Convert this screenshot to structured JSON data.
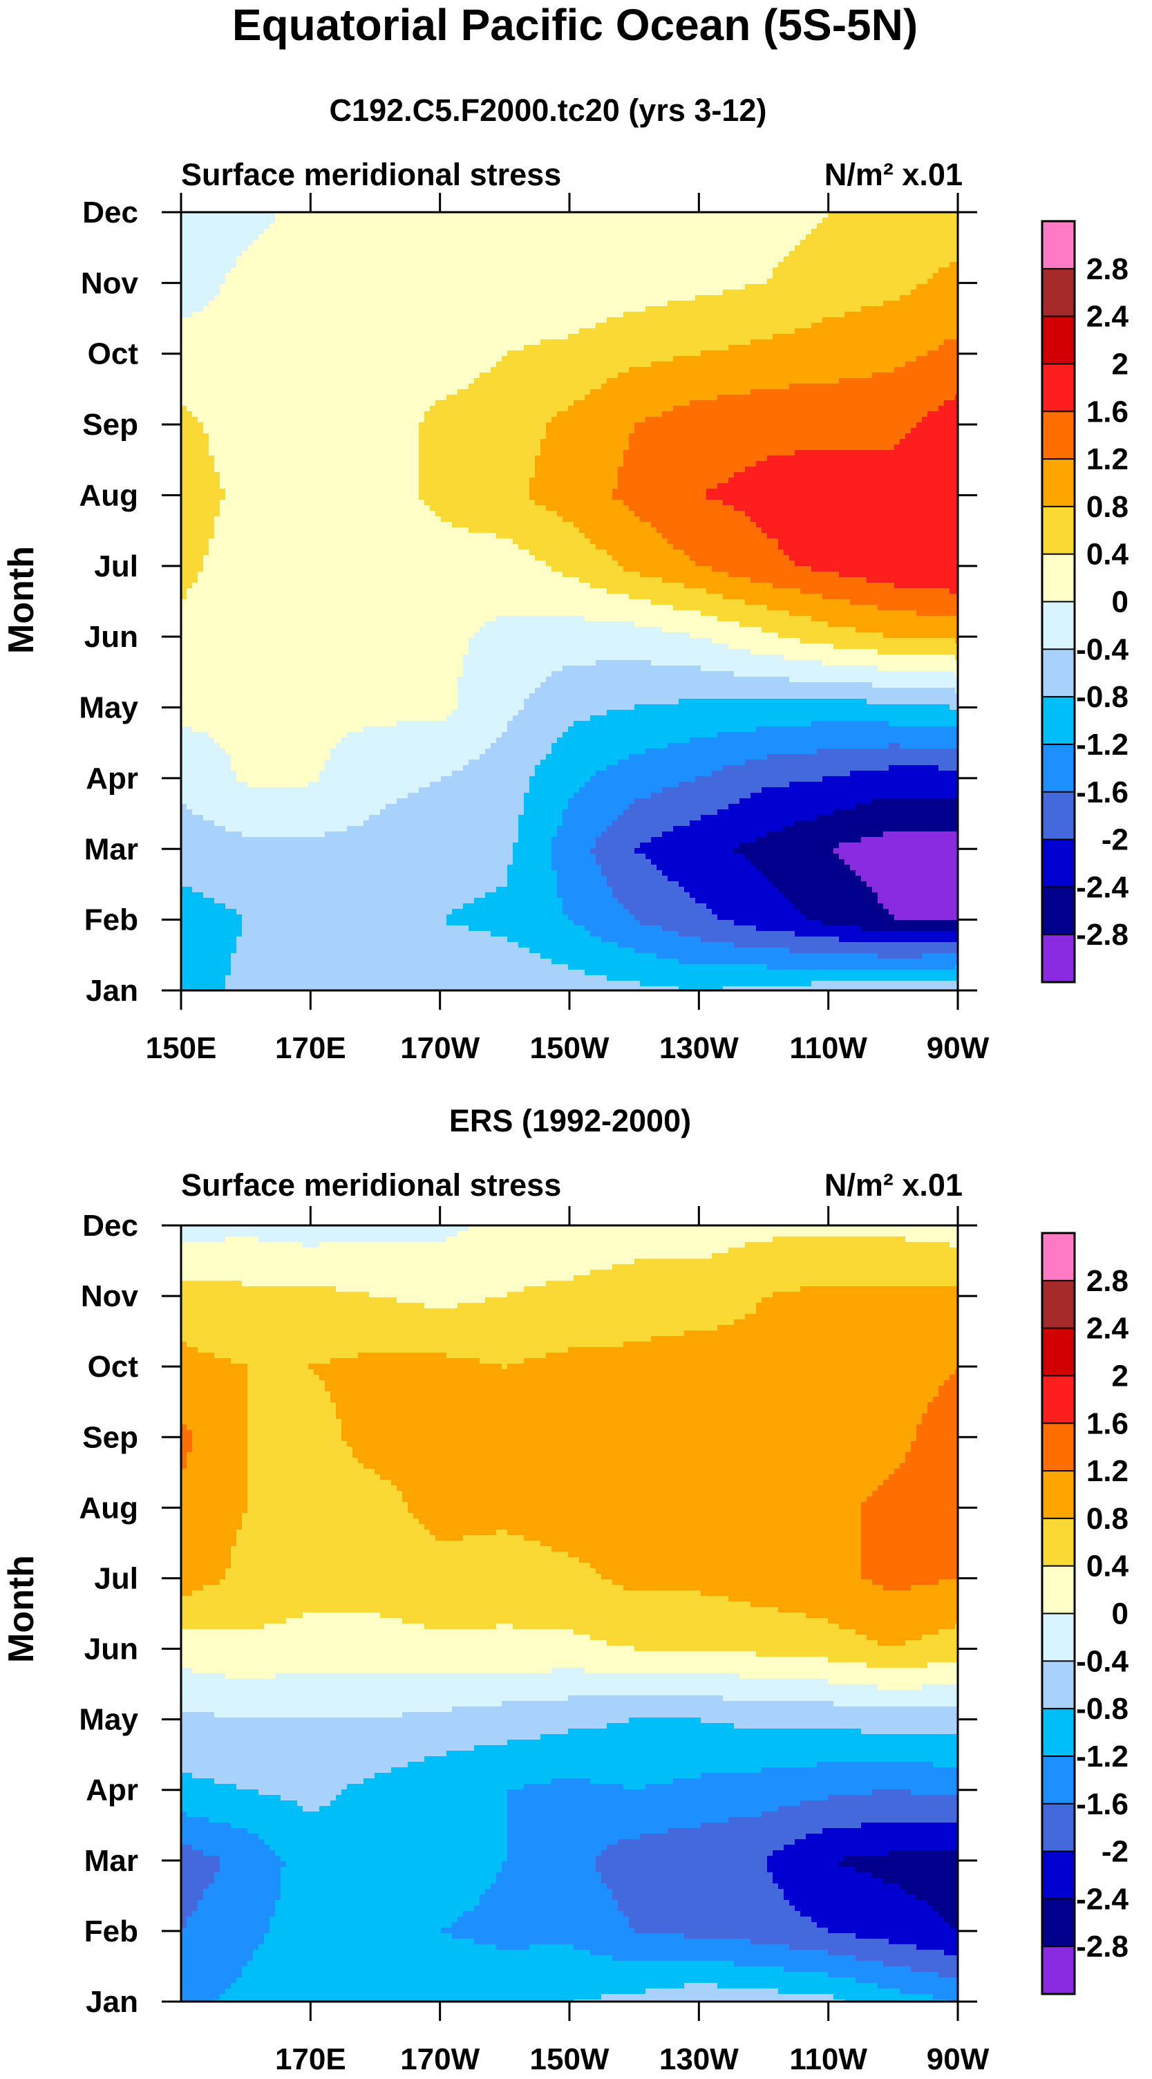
{
  "figure": {
    "title": "Equatorial Pacific Ocean (5S-5N)"
  },
  "contour_levels": [
    -2.8,
    -2.4,
    -2.0,
    -1.6,
    -1.2,
    -0.8,
    -0.4,
    0.0,
    0.4,
    0.8,
    1.2,
    1.6,
    2.0,
    2.4,
    2.8
  ],
  "colorbar": {
    "labels": [
      "2.8",
      "2.4",
      "2",
      "1.6",
      "1.2",
      "0.8",
      "0.4",
      "0",
      "-0.4",
      "-0.8",
      "-1.2",
      "-1.6",
      "-2",
      "-2.4",
      "-2.8"
    ],
    "colors": [
      "#ff7ac4",
      "#a52a2a",
      "#d20000",
      "#ff1e1e",
      "#ff6e00",
      "#ffa500",
      "#fbd935",
      "#ffffc8",
      "#d8f4ff",
      "#a8d2fb",
      "#00bef7",
      "#1e8fff",
      "#4369dc",
      "#0000d0",
      "#00008c",
      "#8a2be2"
    ]
  },
  "chart_data": [
    {
      "type": "heatmap",
      "title": "C192.C5.F2000.tc20 (yrs 3-12)",
      "left_label": "Surface meridional stress",
      "right_label": "N/m² x.01",
      "ylabel": "Month",
      "xlabel": "",
      "xlim": [
        150,
        270
      ],
      "x_ticks": [
        150,
        170,
        190,
        210,
        230,
        250,
        270
      ],
      "x_tick_labels": [
        "150E",
        "170E",
        "170W",
        "150W",
        "130W",
        "110W",
        "90W"
      ],
      "y_tick_labels": [
        "Jan",
        "Feb",
        "Mar",
        "Apr",
        "May",
        "Jun",
        "Jul",
        "Aug",
        "Sep",
        "Oct",
        "Nov",
        "Dec"
      ],
      "longitudes": [
        150,
        160,
        170,
        180,
        190,
        200,
        210,
        220,
        230,
        240,
        250,
        260,
        270
      ],
      "months": [
        "Jan",
        "Feb",
        "Mar",
        "Apr",
        "May",
        "Jun",
        "Jul",
        "Aug",
        "Sep",
        "Oct",
        "Nov",
        "Dec"
      ],
      "values": [
        [
          -1.0,
          -0.7,
          -0.6,
          -0.5,
          -0.5,
          -0.5,
          -0.6,
          -0.7,
          -0.8,
          -0.7,
          -0.6,
          -0.5,
          -0.4
        ],
        [
          -1.0,
          -0.8,
          -0.7,
          -0.7,
          -0.8,
          -0.9,
          -1.2,
          -1.6,
          -1.9,
          -2.2,
          -2.5,
          -2.8,
          -2.8
        ],
        [
          -0.6,
          -0.5,
          -0.5,
          -0.5,
          -0.6,
          -0.7,
          -1.4,
          -2.0,
          -2.3,
          -2.5,
          -2.8,
          -3.0,
          -3.0
        ],
        [
          -0.3,
          0.05,
          0.05,
          -0.3,
          -0.4,
          -0.6,
          -1.1,
          -1.4,
          -1.6,
          -1.9,
          -2.0,
          -2.2,
          -2.2
        ],
        [
          0.1,
          0.1,
          0.1,
          0.1,
          0.1,
          -0.3,
          -0.7,
          -0.8,
          -0.9,
          -0.9,
          -1.0,
          -0.9,
          -0.8
        ],
        [
          0.3,
          0.1,
          0.1,
          0.1,
          0.1,
          -0.1,
          -0.2,
          -0.2,
          0.0,
          0.3,
          0.6,
          0.8,
          0.9
        ],
        [
          0.5,
          0.2,
          0.2,
          0.2,
          0.2,
          0.2,
          0.5,
          0.9,
          1.2,
          1.5,
          1.7,
          1.9,
          2.0
        ],
        [
          0.6,
          0.3,
          0.2,
          0.2,
          0.5,
          0.7,
          1.0,
          1.3,
          1.6,
          1.7,
          1.8,
          1.8,
          1.9
        ],
        [
          0.5,
          0.2,
          0.2,
          0.2,
          0.5,
          0.6,
          0.9,
          1.2,
          1.4,
          1.5,
          1.5,
          1.5,
          1.8
        ],
        [
          0.2,
          0.1,
          0.1,
          0.1,
          0.2,
          0.4,
          0.5,
          0.7,
          0.8,
          0.9,
          1.0,
          1.1,
          1.3
        ],
        [
          -0.2,
          0.1,
          0.1,
          0.1,
          0.1,
          0.1,
          0.1,
          0.2,
          0.3,
          0.4,
          0.6,
          0.7,
          0.9
        ],
        [
          -0.3,
          -0.1,
          0.1,
          0.1,
          0.1,
          0.1,
          0.1,
          0.1,
          0.2,
          0.2,
          0.4,
          0.6,
          0.6
        ]
      ]
    },
    {
      "type": "heatmap",
      "title": "ERS (1992-2000)",
      "left_label": "Surface meridional stress",
      "right_label": "N/m² x.01",
      "ylabel": "Month",
      "xlabel": "",
      "xlim": [
        150,
        270
      ],
      "x_ticks": [
        170,
        190,
        210,
        230,
        250,
        270
      ],
      "x_tick_labels": [
        "170E",
        "170W",
        "150W",
        "130W",
        "110W",
        "90W"
      ],
      "y_tick_labels": [
        "Jan",
        "Feb",
        "Mar",
        "Apr",
        "May",
        "Jun",
        "Jul",
        "Aug",
        "Sep",
        "Oct",
        "Nov",
        "Dec"
      ],
      "longitudes": [
        150,
        160,
        170,
        180,
        190,
        200,
        210,
        220,
        230,
        240,
        250,
        260,
        270
      ],
      "months": [
        "Jan",
        "Feb",
        "Mar",
        "Apr",
        "May",
        "Jun",
        "Jul",
        "Aug",
        "Sep",
        "Oct",
        "Nov",
        "Dec"
      ],
      "values": [
        [
          -1.3,
          -1.1,
          -0.9,
          -1.0,
          -0.9,
          -0.9,
          -0.8,
          -0.7,
          -0.5,
          -0.6,
          -0.7,
          -1.0,
          -1.2
        ],
        [
          -1.6,
          -1.3,
          -1.0,
          -1.1,
          -1.2,
          -1.3,
          -1.3,
          -1.6,
          -1.7,
          -1.8,
          -2.0,
          -2.2,
          -2.4
        ],
        [
          -1.8,
          -1.5,
          -1.0,
          -0.9,
          -1.0,
          -1.2,
          -1.5,
          -1.8,
          -1.9,
          -2.0,
          -2.4,
          -2.5,
          -2.6
        ],
        [
          -0.9,
          -0.8,
          -0.7,
          -0.9,
          -1.1,
          -1.2,
          -1.3,
          -1.2,
          -1.3,
          -1.4,
          -1.5,
          -1.6,
          -1.5
        ],
        [
          -0.5,
          -0.4,
          -0.4,
          -0.4,
          -0.5,
          -0.6,
          -0.7,
          -0.8,
          -0.8,
          -0.7,
          -0.7,
          -0.6,
          -0.6
        ],
        [
          0.2,
          0.3,
          0.2,
          0.2,
          0.3,
          0.3,
          0.3,
          0.4,
          0.4,
          0.5,
          0.6,
          0.8,
          0.6
        ],
        [
          1.0,
          0.7,
          0.6,
          0.6,
          0.7,
          0.6,
          0.7,
          0.9,
          0.9,
          1.0,
          1.1,
          1.3,
          1.2
        ],
        [
          1.1,
          0.8,
          0.7,
          0.7,
          0.9,
          0.9,
          1.0,
          1.0,
          1.0,
          1.1,
          1.1,
          1.3,
          1.3
        ],
        [
          1.3,
          0.8,
          0.7,
          0.9,
          0.9,
          0.9,
          0.9,
          1.0,
          1.0,
          0.9,
          1.0,
          1.1,
          1.4
        ],
        [
          0.9,
          0.8,
          0.8,
          0.9,
          0.9,
          0.8,
          0.9,
          0.9,
          1.0,
          0.9,
          0.9,
          1.0,
          1.2
        ],
        [
          0.6,
          0.5,
          0.5,
          0.4,
          0.3,
          0.4,
          0.5,
          0.6,
          0.6,
          0.8,
          0.9,
          0.9,
          0.9
        ],
        [
          -0.2,
          -0.1,
          -0.2,
          -0.1,
          -0.1,
          0.1,
          0.1,
          0.2,
          0.2,
          0.3,
          0.3,
          0.3,
          0.2
        ]
      ]
    }
  ]
}
